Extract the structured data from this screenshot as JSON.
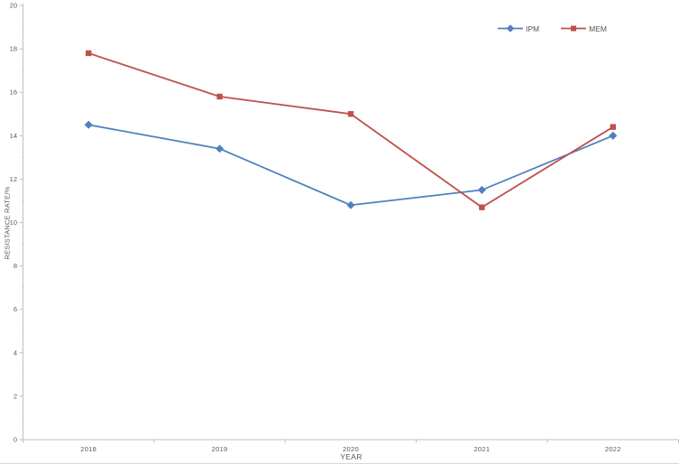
{
  "chart_data": {
    "type": "line",
    "title": "",
    "xlabel": "YEAR",
    "ylabel": "RESISTANCE RATE/%",
    "categories": [
      "2018",
      "2019",
      "2020",
      "2021",
      "2022"
    ],
    "series": [
      {
        "name": "IPM",
        "color": "#4F81BD",
        "marker": "diamond",
        "values": [
          14.5,
          13.4,
          10.8,
          11.5,
          14.0
        ]
      },
      {
        "name": "MEM",
        "color": "#C0504D",
        "marker": "square",
        "values": [
          17.8,
          15.8,
          15.0,
          10.7,
          14.4
        ]
      }
    ],
    "ylim": [
      0,
      20
    ],
    "ytick_step": 2,
    "yminor_step": 1,
    "grid": false,
    "legend_position": "top-right-inside",
    "axis_color": "#bfbfbf",
    "minor_tick_color": "#d9d9d9",
    "tick_label_color": "#595959",
    "background_color": "#ffffff"
  }
}
